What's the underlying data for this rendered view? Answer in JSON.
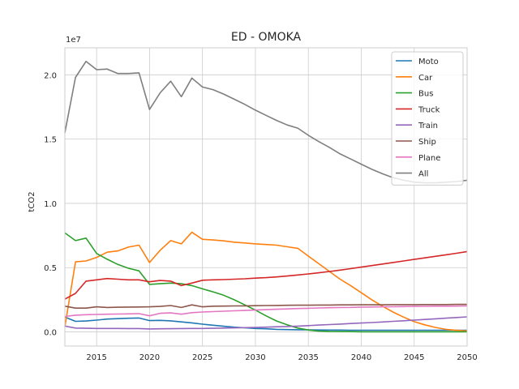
{
  "chart_data": {
    "type": "line",
    "title": "ED - OMOKA",
    "xlabel": "",
    "ylabel": "tCO2",
    "offset_text": "1e7",
    "xlim": [
      2012,
      2050
    ],
    "ylim": [
      -1100000.0,
      22100000.0
    ],
    "x_ticks": [
      2015,
      2020,
      2025,
      2030,
      2035,
      2040,
      2045,
      2050
    ],
    "y_ticks": [
      0,
      5000000,
      10000000,
      15000000,
      20000000
    ],
    "y_tick_labels": [
      "0.0",
      "0.5",
      "1.0",
      "1.5",
      "2.0"
    ],
    "grid": true,
    "legend_position": "top-right",
    "x": [
      2012,
      2013,
      2014,
      2015,
      2016,
      2017,
      2018,
      2019,
      2020,
      2021,
      2022,
      2023,
      2024,
      2025,
      2026,
      2027,
      2028,
      2029,
      2030,
      2031,
      2032,
      2033,
      2034,
      2035,
      2036,
      2037,
      2038,
      2039,
      2040,
      2041,
      2042,
      2043,
      2044,
      2045,
      2046,
      2047,
      2048,
      2049,
      2050
    ],
    "series": [
      {
        "name": "Moto",
        "color": "#1f77b4",
        "values": [
          1150000,
          820000,
          850000,
          920000,
          1000000,
          1030000,
          1060000,
          1080000,
          880000,
          900000,
          860000,
          780000,
          700000,
          600000,
          520000,
          440000,
          370000,
          320000,
          270000,
          240000,
          200000,
          180000,
          170000,
          160000,
          150000,
          140000,
          140000,
          130000,
          130000,
          130000,
          130000,
          130000,
          130000,
          130000,
          130000,
          130000,
          130000,
          130000,
          130000
        ]
      },
      {
        "name": "Car",
        "color": "#ff7f0e",
        "values": [
          400000,
          5450000,
          5520000,
          5800000,
          6200000,
          6300000,
          6600000,
          6750000,
          5400000,
          6350000,
          7100000,
          6850000,
          7750000,
          7200000,
          7150000,
          7080000,
          6980000,
          6920000,
          6850000,
          6800000,
          6750000,
          6620000,
          6500000,
          5900000,
          5300000,
          4700000,
          4100000,
          3600000,
          3050000,
          2500000,
          2000000,
          1550000,
          1150000,
          800000,
          550000,
          350000,
          200000,
          120000,
          80000
        ]
      },
      {
        "name": "Bus",
        "color": "#2ca02c",
        "values": [
          7700000,
          7100000,
          7300000,
          6100000,
          5650000,
          5250000,
          4950000,
          4750000,
          3700000,
          3750000,
          3800000,
          3750000,
          3600000,
          3350000,
          3120000,
          2850000,
          2500000,
          2100000,
          1700000,
          1250000,
          850000,
          550000,
          300000,
          150000,
          60000,
          30000,
          20000,
          20000,
          10000,
          10000,
          10000,
          10000,
          10000,
          10000,
          10000,
          10000,
          10000,
          10000,
          10000
        ]
      },
      {
        "name": "Truck",
        "color": "#d62728",
        "values": [
          2550000,
          3000000,
          3950000,
          4050000,
          4150000,
          4100000,
          4050000,
          4050000,
          3900000,
          4000000,
          3950000,
          3600000,
          3800000,
          4020000,
          4050000,
          4070000,
          4100000,
          4130000,
          4180000,
          4220000,
          4280000,
          4350000,
          4430000,
          4510000,
          4600000,
          4700000,
          4810000,
          4920000,
          5040000,
          5160000,
          5280000,
          5400000,
          5520000,
          5640000,
          5760000,
          5880000,
          6000000,
          6120000,
          6250000
        ]
      },
      {
        "name": "Train",
        "color": "#9467bd",
        "values": [
          450000,
          300000,
          280000,
          270000,
          270000,
          270000,
          260000,
          260000,
          230000,
          240000,
          250000,
          260000,
          270000,
          270000,
          280000,
          300000,
          310000,
          330000,
          350000,
          370000,
          400000,
          420000,
          450000,
          490000,
          530000,
          570000,
          610000,
          650000,
          690000,
          730000,
          770000,
          820000,
          870000,
          920000,
          970000,
          1020000,
          1070000,
          1120000,
          1170000
        ]
      },
      {
        "name": "Ship",
        "color": "#8c564b",
        "values": [
          2000000,
          1850000,
          1850000,
          1950000,
          1900000,
          1920000,
          1930000,
          1940000,
          1950000,
          1980000,
          2050000,
          1900000,
          2100000,
          1950000,
          2000000,
          2010000,
          2020000,
          2030000,
          2040000,
          2050000,
          2060000,
          2070000,
          2080000,
          2080000,
          2090000,
          2090000,
          2100000,
          2100000,
          2110000,
          2110000,
          2110000,
          2120000,
          2120000,
          2120000,
          2130000,
          2130000,
          2130000,
          2140000,
          2140000
        ]
      },
      {
        "name": "Plane",
        "color": "#e377c2",
        "values": [
          1200000,
          1300000,
          1340000,
          1360000,
          1380000,
          1390000,
          1400000,
          1420000,
          1250000,
          1450000,
          1480000,
          1380000,
          1500000,
          1550000,
          1580000,
          1610000,
          1640000,
          1670000,
          1700000,
          1730000,
          1760000,
          1790000,
          1820000,
          1840000,
          1860000,
          1880000,
          1900000,
          1910000,
          1930000,
          1940000,
          1950000,
          1960000,
          1970000,
          1980000,
          1990000,
          2000000,
          2000000,
          2010000,
          2020000
        ]
      },
      {
        "name": "All",
        "color": "#7f7f7f",
        "values": [
          15500000,
          19800000,
          21050000,
          20400000,
          20450000,
          20100000,
          20100000,
          20150000,
          17300000,
          18600000,
          19500000,
          18300000,
          19750000,
          19050000,
          18850000,
          18500000,
          18100000,
          17700000,
          17250000,
          16850000,
          16450000,
          16100000,
          15850000,
          15300000,
          14800000,
          14350000,
          13850000,
          13450000,
          13050000,
          12650000,
          12300000,
          12000000,
          11800000,
          11650000,
          11600000,
          11600000,
          11650000,
          11700000,
          11800000
        ]
      }
    ]
  }
}
